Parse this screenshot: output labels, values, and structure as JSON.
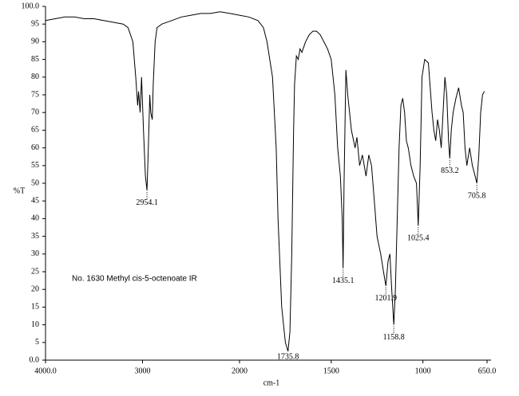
{
  "chart_data": {
    "type": "line",
    "annotation": "No. 1630 Methyl cis-5-octenoate IR",
    "ylabel": "%T",
    "xlabel": "cm-1",
    "xlim": [
      4000,
      650
    ],
    "x_scale_break": 2000,
    "xticks": [
      {
        "value": 4000,
        "label": "4000.0"
      },
      3000,
      2000,
      1500,
      1000,
      {
        "value": 650,
        "label": "650.0"
      }
    ],
    "ylim": [
      0,
      100
    ],
    "yticks": [
      {
        "value": 0,
        "label": "0.0"
      },
      5,
      10,
      15,
      20,
      25,
      30,
      35,
      40,
      45,
      50,
      55,
      60,
      65,
      70,
      75,
      80,
      85,
      90,
      95,
      {
        "value": 100,
        "label": "100.0"
      }
    ],
    "color": "#000000",
    "x": [
      4000,
      3900,
      3800,
      3700,
      3600,
      3500,
      3400,
      3300,
      3200,
      3150,
      3100,
      3070,
      3050,
      3040,
      3025,
      3010,
      2990,
      2970,
      2954.1,
      2940,
      2925,
      2915,
      2900,
      2890,
      2870,
      2850,
      2800,
      2700,
      2600,
      2500,
      2400,
      2300,
      2200,
      2100,
      2000,
      1950,
      1900,
      1870,
      1850,
      1820,
      1800,
      1790,
      1770,
      1750,
      1735.8,
      1725,
      1715,
      1705,
      1700,
      1690,
      1680,
      1670,
      1660,
      1640,
      1620,
      1600,
      1580,
      1560,
      1540,
      1520,
      1500,
      1480,
      1465,
      1450,
      1440,
      1435.1,
      1430,
      1420,
      1410,
      1390,
      1370,
      1360,
      1345,
      1330,
      1310,
      1295,
      1280,
      1265,
      1250,
      1230,
      1215,
      1201.9,
      1190,
      1180,
      1170,
      1158.8,
      1150,
      1140,
      1130,
      1120,
      1110,
      1100,
      1090,
      1080,
      1065,
      1050,
      1035,
      1025.4,
      1015,
      1005,
      990,
      970,
      950,
      940,
      930,
      920,
      910,
      900,
      890,
      880,
      870,
      860,
      853.2,
      845,
      835,
      820,
      805,
      790,
      780,
      770,
      760,
      745,
      730,
      715,
      705.8,
      695,
      685,
      675,
      665
    ],
    "values": [
      96,
      96.5,
      97,
      97,
      96.5,
      96.5,
      96,
      95.5,
      95,
      94,
      90,
      80,
      72,
      76,
      70,
      80,
      65,
      52,
      48,
      60,
      75,
      70,
      68,
      78,
      90,
      94,
      95,
      96,
      97,
      97.5,
      98,
      98,
      98.5,
      98,
      97.5,
      97,
      96,
      94,
      90,
      80,
      60,
      40,
      15,
      5,
      2.5,
      8,
      30,
      65,
      78,
      86,
      85,
      88,
      87,
      90,
      92,
      93,
      93,
      92,
      90,
      88,
      85,
      75,
      60,
      52,
      40,
      26,
      50,
      82,
      75,
      65,
      60,
      63,
      55,
      58,
      52,
      58,
      55,
      45,
      35,
      30,
      25,
      21,
      28,
      30,
      20,
      10,
      20,
      40,
      60,
      72,
      74,
      70,
      62,
      60,
      55,
      52,
      50,
      38,
      55,
      80,
      85,
      84,
      70,
      65,
      62,
      68,
      65,
      60,
      70,
      80,
      75,
      62,
      57,
      65,
      70,
      74,
      77,
      72,
      70,
      60,
      55,
      60,
      55,
      52,
      50,
      58,
      70,
      75,
      76
    ],
    "peaks": [
      2954.1,
      1735.8,
      1435.1,
      1201.9,
      1158.8,
      1025.4,
      853.2,
      705.8
    ]
  }
}
